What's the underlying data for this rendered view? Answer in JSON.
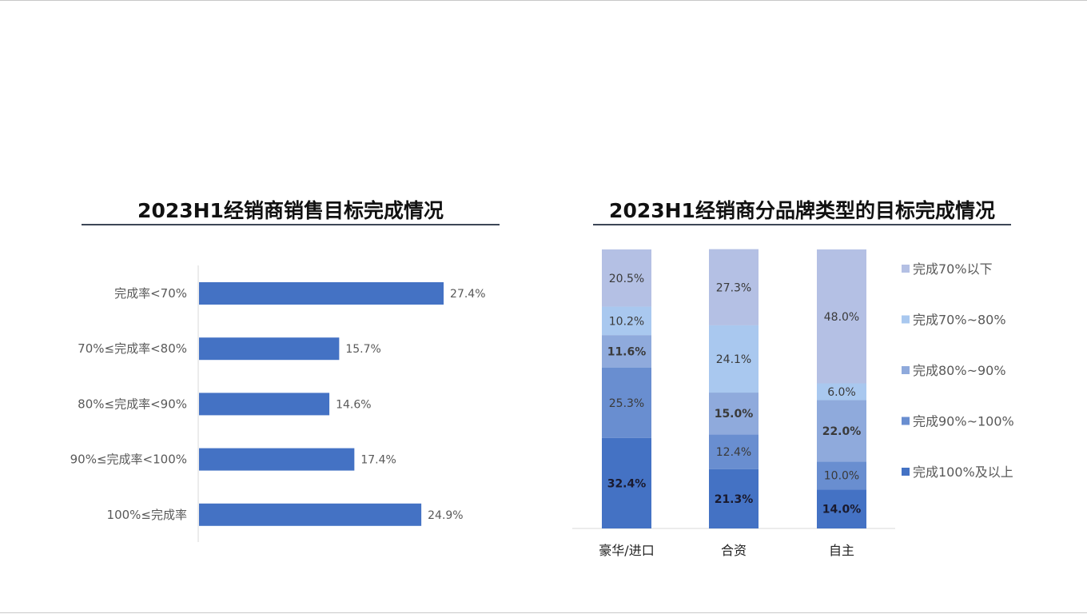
{
  "chart_data": [
    {
      "type": "bar",
      "orientation": "horizontal",
      "title": "2023H1经销商销售目标完成情况",
      "categories": [
        "完成率<70%",
        "70%≤完成率<80%",
        "80%≤完成率<90%",
        "90%≤完成率<100%",
        "100%≤完成率"
      ],
      "values": [
        27.4,
        15.7,
        14.6,
        17.4,
        24.9
      ],
      "value_labels": [
        "27.4%",
        "15.7%",
        "14.6%",
        "17.4%",
        "24.9%"
      ],
      "xlim": [
        0,
        30
      ],
      "grid": false,
      "colors": {
        "bar": "#4472c4"
      }
    },
    {
      "type": "bar",
      "stacked": true,
      "percent": true,
      "title": "2023H1经销商分品牌类型的目标完成情况",
      "categories": [
        "豪华/进口",
        "合资",
        "自主"
      ],
      "ylim": [
        0,
        100
      ],
      "legend": "right",
      "grid": false,
      "series": [
        {
          "name": "完成100%及以上",
          "color": "#4472c4",
          "values": [
            32.4,
            21.3,
            14.0
          ],
          "labels": [
            "32.4%",
            "21.3%",
            "14.0%"
          ],
          "bold": true
        },
        {
          "name": "完成90%~100%",
          "color": "#698ed0",
          "values": [
            25.3,
            12.4,
            10.0
          ],
          "labels": [
            "25.3%",
            "12.4%",
            "10.0%"
          ],
          "bold": false
        },
        {
          "name": "完成80%~90%",
          "color": "#8faadc",
          "values": [
            11.6,
            15.0,
            22.0
          ],
          "labels": [
            "11.6%",
            "15.0%",
            "22.0%"
          ],
          "bold": true
        },
        {
          "name": "完成70%~80%",
          "color": "#a9c8ef",
          "values": [
            10.2,
            24.1,
            6.0
          ],
          "labels": [
            "10.2%",
            "24.1%",
            "6.0%"
          ],
          "bold": false
        },
        {
          "name": "完成70%以下",
          "color": "#b4c0e4",
          "values": [
            20.5,
            27.3,
            48.0
          ],
          "labels": [
            "20.5%",
            "27.3%",
            "48.0%"
          ],
          "bold": false
        }
      ]
    }
  ]
}
